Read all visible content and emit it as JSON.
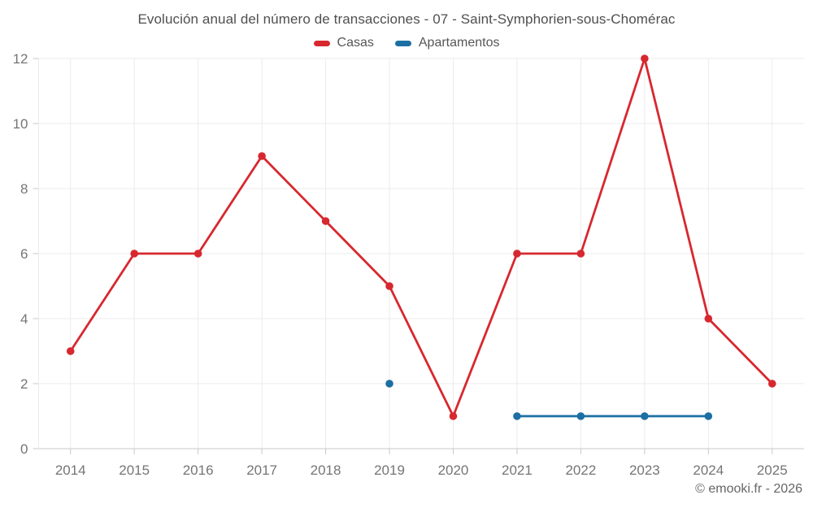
{
  "header": {
    "title": "Evolución anual del número de transacciones - 07 - Saint-Symphorien-sous-Chomérac"
  },
  "chart_data": {
    "type": "line",
    "title": "Evolución anual del número de transacciones - 07 - Saint-Symphorien-sous-Chomérac",
    "categories": [
      "2014",
      "2015",
      "2016",
      "2017",
      "2018",
      "2019",
      "2020",
      "2021",
      "2022",
      "2023",
      "2024",
      "2025"
    ],
    "series": [
      {
        "name": "Casas",
        "color": "#d7282f",
        "values": [
          3,
          6,
          6,
          9,
          7,
          5,
          1,
          6,
          6,
          12,
          4,
          2
        ]
      },
      {
        "name": "Apartamentos",
        "color": "#1b6fa3",
        "values": [
          null,
          null,
          null,
          null,
          null,
          2,
          null,
          1,
          1,
          1,
          1,
          null
        ]
      }
    ],
    "xlabel": "",
    "ylabel": "",
    "ylim": [
      0,
      12
    ],
    "yticks": [
      0,
      2,
      4,
      6,
      8,
      10,
      12
    ],
    "grid": true,
    "legend_position": "top",
    "colors": {
      "grid_line": "#ebebeb",
      "axis_line": "#c9c9c9",
      "tick_mark": "#c9c9c9",
      "tick_label": "#757575",
      "title_text": "#4f4f4f",
      "legend_text": "#565656"
    }
  },
  "footer": {
    "copyright": "© emooki.fr - 2026"
  }
}
